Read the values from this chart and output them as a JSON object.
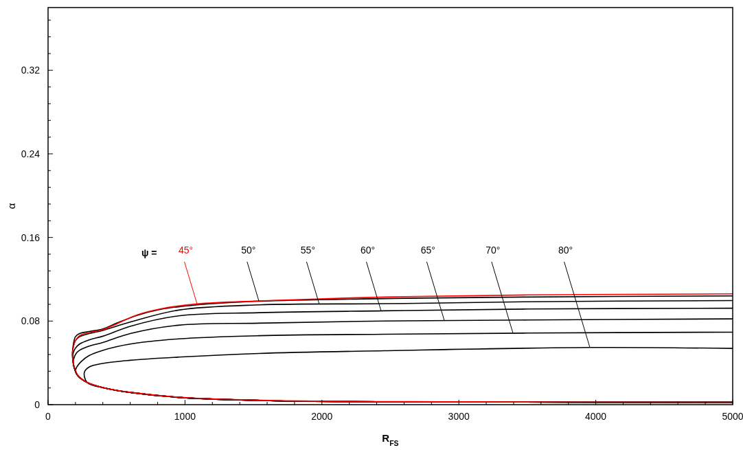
{
  "chart_data": {
    "type": "line",
    "xlabel": "R$_{FS}$",
    "ylabel": "α",
    "xlim": [
      0,
      5000
    ],
    "ylim": [
      0,
      0.38
    ],
    "xticks": [
      0,
      {
        "value": 200,
        "label": null
      },
      {
        "value": 400,
        "label": null
      },
      {
        "value": 600,
        "label": null
      },
      {
        "value": 800,
        "label": null
      },
      1000,
      {
        "value": 1200,
        "label": null
      },
      {
        "value": 1400,
        "label": null
      },
      {
        "value": 1600,
        "label": null
      },
      {
        "value": 1800,
        "label": null
      },
      2000,
      {
        "value": 2200,
        "label": null
      },
      {
        "value": 2400,
        "label": null
      },
      {
        "value": 2600,
        "label": null
      },
      {
        "value": 2800,
        "label": null
      },
      3000,
      {
        "value": 3200,
        "label": null
      },
      {
        "value": 3400,
        "label": null
      },
      {
        "value": 3600,
        "label": null
      },
      {
        "value": 3800,
        "label": null
      },
      4000,
      {
        "value": 4200,
        "label": null
      },
      {
        "value": 4400,
        "label": null
      },
      {
        "value": 4600,
        "label": null
      },
      {
        "value": 4800,
        "label": null
      },
      5000
    ],
    "yticks": [
      0,
      {
        "value": 0.016,
        "label": null
      },
      {
        "value": 0.032,
        "label": null
      },
      {
        "value": 0.048,
        "label": null
      },
      {
        "value": 0.064,
        "label": null
      },
      0.08,
      {
        "value": 0.096,
        "label": null
      },
      {
        "value": 0.112,
        "label": null
      },
      {
        "value": 0.128,
        "label": null
      },
      {
        "value": 0.144,
        "label": null
      },
      0.16,
      {
        "value": 0.176,
        "label": null
      },
      {
        "value": 0.192,
        "label": null
      },
      {
        "value": 0.208,
        "label": null
      },
      {
        "value": 0.224,
        "label": null
      },
      0.24,
      {
        "value": 0.256,
        "label": null
      },
      {
        "value": 0.272,
        "label": null
      },
      {
        "value": 0.288,
        "label": null
      },
      {
        "value": 0.304,
        "label": null
      },
      0.32,
      {
        "value": 0.336,
        "label": null
      },
      {
        "value": 0.352,
        "label": null
      },
      {
        "value": 0.368,
        "label": null
      }
    ],
    "grid": false,
    "marker": "none",
    "line_style": "solid",
    "series": [
      {
        "color": "#ff0000",
        "x": [
          5000,
          3500,
          2457,
          1540,
          1088,
          817,
          652,
          501,
          401,
          300,
          230,
          195,
          183,
          178,
          184,
          200,
          218,
          290,
          417,
          618,
          953,
          1620,
          3000,
          5000
        ],
        "values": [
          0.106,
          0.105,
          0.103,
          0.0993,
          0.0964,
          0.0916,
          0.086,
          0.0773,
          0.0718,
          0.069,
          0.066,
          0.06,
          0.054,
          0.048,
          0.04,
          0.033,
          0.028,
          0.021,
          0.0158,
          0.0116,
          0.0072,
          0.004,
          0.0027,
          0.0023
        ]
      },
      {
        "color": "#000000",
        "x": [
          5000,
          3500,
          2457,
          1540,
          1088,
          817,
          652,
          501,
          401,
          300,
          230,
          200,
          185,
          178,
          186,
          216,
          285,
          417,
          618,
          953,
          1620,
          3000,
          5000
        ],
        "values": [
          0.104,
          0.103,
          0.1015,
          0.099,
          0.0955,
          0.091,
          0.0855,
          0.078,
          0.0725,
          0.07,
          0.068,
          0.065,
          0.058,
          0.048,
          0.038,
          0.028,
          0.0213,
          0.0158,
          0.0114,
          0.007,
          0.0038,
          0.0026,
          0.0022
        ]
      },
      {
        "color": "#000000",
        "x": [
          5000,
          3500,
          2457,
          1540,
          953,
          600,
          400,
          300,
          230,
          198,
          184,
          178,
          186,
          216,
          285,
          417,
          618,
          953,
          1620,
          3000,
          5000
        ],
        "values": [
          0.0996,
          0.0985,
          0.0966,
          0.0955,
          0.0905,
          0.079,
          0.071,
          0.068,
          0.065,
          0.061,
          0.055,
          0.048,
          0.038,
          0.028,
          0.0213,
          0.0158,
          0.0114,
          0.007,
          0.0038,
          0.0026,
          0.0022
        ]
      },
      {
        "color": "#000000",
        "x": [
          5000,
          3500,
          2457,
          1540,
          953,
          600,
          400,
          300,
          230,
          200,
          185,
          180,
          186,
          216,
          285,
          417,
          618,
          953,
          1620,
          3000,
          5000
        ],
        "values": [
          0.0923,
          0.0915,
          0.0898,
          0.088,
          0.085,
          0.075,
          0.0655,
          0.062,
          0.058,
          0.054,
          0.05,
          0.046,
          0.038,
          0.028,
          0.0213,
          0.0158,
          0.0114,
          0.007,
          0.0038,
          0.0026,
          0.0022
        ]
      },
      {
        "color": "#000000",
        "x": [
          5000,
          3500,
          2457,
          1540,
          953,
          600,
          400,
          300,
          230,
          205,
          188,
          186,
          200,
          216,
          285,
          417,
          618,
          953,
          1620,
          3000,
          5000
        ],
        "values": [
          0.0821,
          0.081,
          0.08,
          0.078,
          0.076,
          0.068,
          0.0595,
          0.056,
          0.052,
          0.049,
          0.044,
          0.038,
          0.032,
          0.028,
          0.0213,
          0.0158,
          0.0114,
          0.007,
          0.0038,
          0.0026,
          0.0022
        ]
      },
      {
        "color": "#000000",
        "x": [
          5000,
          3500,
          2457,
          1540,
          953,
          600,
          400,
          300,
          240,
          210,
          200,
          216,
          285,
          417,
          618,
          953,
          1620,
          3000,
          5000
        ],
        "values": [
          0.0694,
          0.0685,
          0.0674,
          0.066,
          0.063,
          0.058,
          0.052,
          0.047,
          0.041,
          0.036,
          0.032,
          0.028,
          0.0213,
          0.0158,
          0.0114,
          0.007,
          0.0038,
          0.0026,
          0.0022
        ]
      },
      {
        "color": "#000000",
        "x": [
          5000,
          3957,
          2457,
          1540,
          953,
          600,
          400,
          300,
          265,
          285,
          417,
          618,
          953,
          1620,
          3000,
          5000
        ],
        "values": [
          0.0538,
          0.0547,
          0.0516,
          0.049,
          0.0455,
          0.0425,
          0.0395,
          0.036,
          0.031,
          0.0213,
          0.0158,
          0.0114,
          0.007,
          0.0038,
          0.0026,
          0.0022
        ]
      }
    ],
    "annotations": [
      "ψ =",
      {
        "text": "45°",
        "x": 1088,
        "y": 0.0964
      },
      {
        "text": "50°",
        "x": 1540,
        "y": 0.099
      },
      {
        "text": "55°",
        "x": 1981,
        "y": 0.096
      },
      {
        "text": "60°",
        "x": 2432,
        "y": 0.0898
      },
      {
        "text": "65°",
        "x": 2894,
        "y": 0.0805
      },
      {
        "text": "70°",
        "x": 3395,
        "y": 0.0686
      },
      {
        "text": "80°",
        "x": 3957,
        "y": 0.0547
      }
    ]
  }
}
